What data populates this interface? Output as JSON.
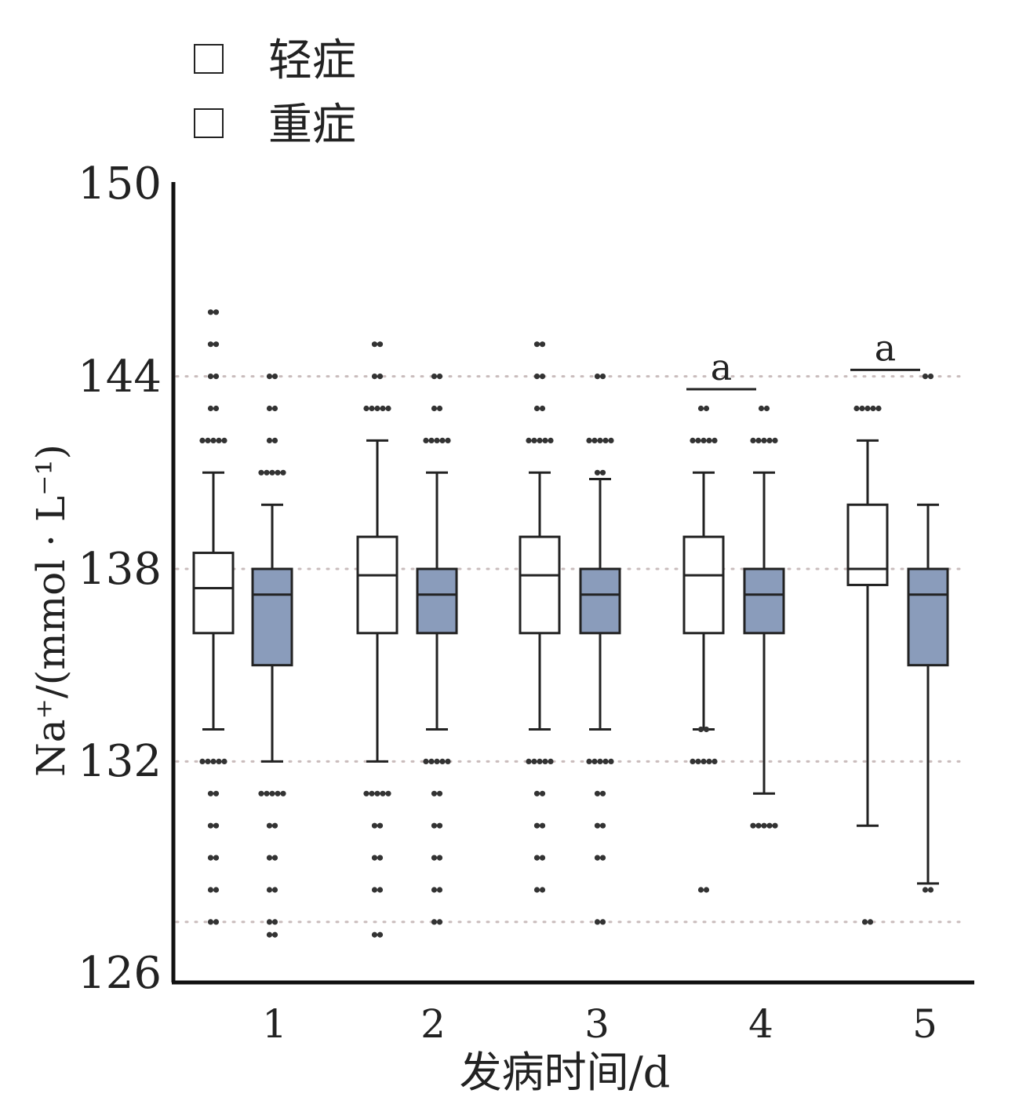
{
  "legend": [
    {
      "label": "轻症",
      "color": "#ffffff"
    },
    {
      "label": "重症",
      "color": "#8a9cbb"
    }
  ],
  "chart_data": {
    "type": "box",
    "xlabel": "发病时间/d",
    "ylabel": "Na⁺/(mmol · L⁻¹)",
    "ylim": [
      126,
      150
    ],
    "yticks": [
      150,
      144,
      138,
      132,
      126
    ],
    "categories": [
      "1",
      "2",
      "3",
      "4",
      "5"
    ],
    "series": [
      {
        "name": "轻症",
        "color": "#ffffff",
        "boxes": [
          {
            "whisker_low": 133,
            "q1": 136,
            "median": 137.4,
            "q3": 138.5,
            "whisker_high": 141,
            "outliers": [
              146,
              145,
              144,
              143,
              142,
              132,
              131,
              130,
              129,
              128,
              127
            ]
          },
          {
            "whisker_low": 132,
            "q1": 136,
            "median": 137.8,
            "q3": 139,
            "whisker_high": 142,
            "outliers": [
              145,
              144,
              143,
              131,
              130,
              129,
              128,
              126.6
            ]
          },
          {
            "whisker_low": 133,
            "q1": 136,
            "median": 137.8,
            "q3": 139,
            "whisker_high": 141,
            "outliers": [
              145,
              144,
              143,
              142,
              132,
              131,
              130,
              129,
              128
            ]
          },
          {
            "whisker_low": 133,
            "q1": 136,
            "median": 137.8,
            "q3": 139,
            "whisker_high": 141,
            "outliers": [
              143,
              142,
              133,
              132,
              128
            ]
          },
          {
            "whisker_low": 130,
            "q1": 137.5,
            "median": 138,
            "q3": 140,
            "whisker_high": 142,
            "outliers": [
              143,
              127
            ]
          }
        ]
      },
      {
        "name": "重症",
        "color": "#8a9cbb",
        "boxes": [
          {
            "whisker_low": 132,
            "q1": 135,
            "median": 137.2,
            "q3": 138,
            "whisker_high": 140,
            "outliers": [
              144,
              143,
              142,
              141,
              131,
              130,
              129,
              128,
              127,
              126.6
            ]
          },
          {
            "whisker_low": 133,
            "q1": 136,
            "median": 137.2,
            "q3": 138,
            "whisker_high": 141,
            "outliers": [
              144,
              143,
              142,
              132,
              131,
              130,
              129,
              128,
              127
            ]
          },
          {
            "whisker_low": 133,
            "q1": 136,
            "median": 137.2,
            "q3": 138,
            "whisker_high": 140.8,
            "outliers": [
              144,
              142,
              141,
              132,
              131,
              130,
              129,
              127
            ]
          },
          {
            "whisker_low": 131,
            "q1": 136,
            "median": 137.2,
            "q3": 138,
            "whisker_high": 141,
            "outliers": [
              143,
              142,
              130
            ]
          },
          {
            "whisker_low": 128.2,
            "q1": 135,
            "median": 137.2,
            "q3": 138,
            "whisker_high": 140,
            "outliers": [
              144,
              128
            ]
          }
        ]
      }
    ],
    "annotations": [
      {
        "label": "a",
        "category": "4",
        "y": 143.6
      },
      {
        "label": "a",
        "category": "5",
        "y": 144.2
      }
    ],
    "reference_lines": [
      144,
      138,
      132,
      127
    ]
  }
}
